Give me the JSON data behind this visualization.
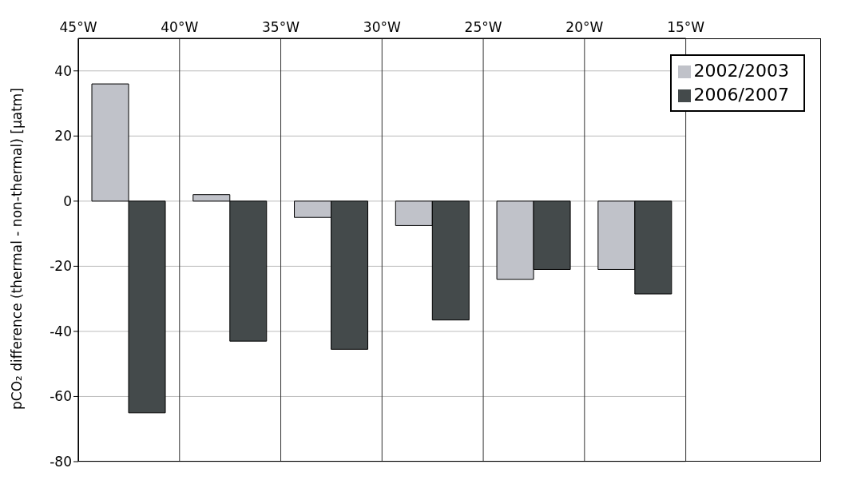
{
  "chart_data": {
    "type": "bar",
    "ylabel": "pCO₂ difference (thermal - non-thermal) [µatm]",
    "x": [
      -42.5,
      -37.5,
      -32.5,
      -27.5,
      -22.5,
      -17.5
    ],
    "xlim": [
      -45,
      -15
    ],
    "xticks": [
      {
        "value": -45,
        "label": "45°W"
      },
      {
        "value": -40,
        "label": "40°W"
      },
      {
        "value": -35,
        "label": "35°W"
      },
      {
        "value": -30,
        "label": "30°W"
      },
      {
        "value": -25,
        "label": "25°W"
      },
      {
        "value": -20,
        "label": "20°W"
      },
      {
        "value": -15,
        "label": "15°W"
      }
    ],
    "ylim": [
      -80,
      50
    ],
    "yticks": [
      -80,
      -60,
      -40,
      -20,
      0,
      20,
      40
    ],
    "series": [
      {
        "name": "2002/2003",
        "color": "#c0c2c9",
        "values": [
          36,
          2,
          -5,
          -7.5,
          -24,
          -21
        ]
      },
      {
        "name": "2006/2007",
        "color": "#444a4b",
        "values": [
          -65,
          -43,
          -45.5,
          -36.5,
          -21,
          -28.5
        ]
      }
    ],
    "grid": true,
    "legend": "top right"
  }
}
